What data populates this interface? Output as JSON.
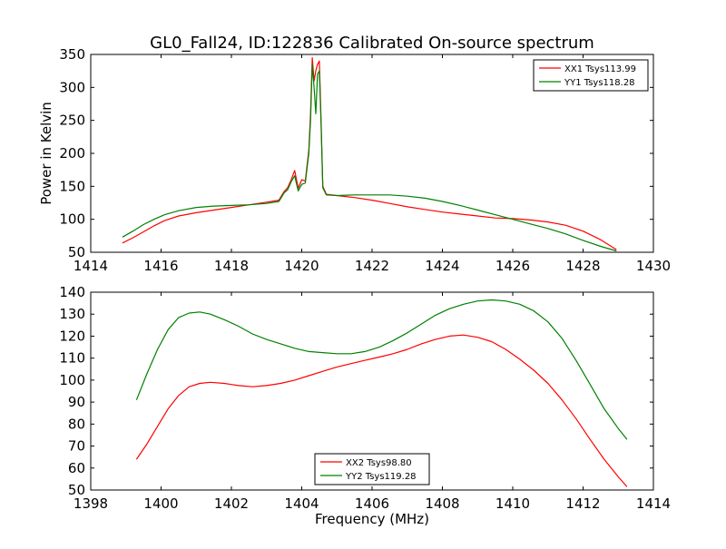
{
  "title": "GL0_Fall24, ID:122836 Calibrated On-source spectrum",
  "chart_data": [
    {
      "type": "line",
      "ylabel": "Power in Kelvin",
      "xlabel": "",
      "xlim": [
        1414,
        1430
      ],
      "ylim": [
        50,
        350
      ],
      "xticks": [
        "1414",
        "1416",
        "1418",
        "1420",
        "1422",
        "1424",
        "1426",
        "1428",
        "1430"
      ],
      "yticks": [
        "50",
        "100",
        "150",
        "200",
        "250",
        "300",
        "350"
      ],
      "grid": false,
      "legend_position": "top-right",
      "series": [
        {
          "name": "XX1 Tsys113.99",
          "color": "#ff0000",
          "x": [
            1414.9,
            1415.2,
            1415.5,
            1415.8,
            1416.1,
            1416.5,
            1417.0,
            1417.5,
            1418.0,
            1418.5,
            1419.0,
            1419.35,
            1419.5,
            1419.6,
            1419.7,
            1419.8,
            1419.9,
            1420.0,
            1420.1,
            1420.2,
            1420.25,
            1420.3,
            1420.35,
            1420.4,
            1420.45,
            1420.5,
            1420.55,
            1420.6,
            1420.7,
            1421.0,
            1421.5,
            1422.0,
            1422.5,
            1423.0,
            1423.5,
            1424.0,
            1424.5,
            1425.0,
            1425.5,
            1426.0,
            1426.5,
            1427.0,
            1427.5,
            1428.0,
            1428.5,
            1428.95
          ],
          "y": [
            64,
            72,
            81,
            90,
            98,
            105,
            110,
            114,
            118,
            122,
            126,
            129,
            142,
            148,
            160,
            174,
            147,
            160,
            158,
            205,
            260,
            345,
            310,
            325,
            335,
            340,
            250,
            150,
            138,
            136,
            133,
            129,
            124,
            119,
            115,
            111,
            108,
            105,
            102,
            101,
            99,
            96,
            91,
            82,
            69,
            54
          ]
        },
        {
          "name": "YY1 Tsys118.28",
          "color": "#008000",
          "x": [
            1414.9,
            1415.2,
            1415.5,
            1415.8,
            1416.1,
            1416.5,
            1417.0,
            1417.5,
            1418.0,
            1418.5,
            1419.0,
            1419.35,
            1419.5,
            1419.6,
            1419.7,
            1419.8,
            1419.9,
            1420.0,
            1420.1,
            1420.2,
            1420.25,
            1420.3,
            1420.35,
            1420.4,
            1420.45,
            1420.5,
            1420.55,
            1420.6,
            1420.7,
            1421.0,
            1421.5,
            1422.0,
            1422.5,
            1423.0,
            1423.5,
            1424.0,
            1424.5,
            1425.0,
            1425.5,
            1426.0,
            1426.5,
            1427.0,
            1427.5,
            1428.0,
            1428.5,
            1428.95
          ],
          "y": [
            73,
            82,
            92,
            100,
            107,
            113,
            118,
            120,
            121,
            122,
            124,
            127,
            140,
            145,
            157,
            166,
            143,
            153,
            155,
            200,
            250,
            335,
            300,
            260,
            320,
            325,
            245,
            148,
            137,
            136,
            137,
            137,
            137,
            135,
            132,
            127,
            121,
            114,
            107,
            100,
            93,
            86,
            78,
            68,
            59,
            52
          ]
        }
      ]
    },
    {
      "type": "line",
      "ylabel": "",
      "xlabel": "Frequency (MHz)",
      "xlim": [
        1398,
        1414
      ],
      "ylim": [
        50,
        140
      ],
      "xticks": [
        "1398",
        "1400",
        "1402",
        "1404",
        "1406",
        "1408",
        "1410",
        "1412",
        "1414"
      ],
      "yticks": [
        "50",
        "60",
        "70",
        "80",
        "90",
        "100",
        "110",
        "120",
        "130",
        "140"
      ],
      "grid": false,
      "legend_position": "bottom-center",
      "series": [
        {
          "name": "XX2 Tsys98.80",
          "color": "#ff0000",
          "x": [
            1399.3,
            1399.6,
            1399.9,
            1400.2,
            1400.5,
            1400.8,
            1401.1,
            1401.4,
            1401.8,
            1402.2,
            1402.6,
            1403.0,
            1403.4,
            1403.8,
            1404.2,
            1404.6,
            1405.0,
            1405.4,
            1405.8,
            1406.2,
            1406.6,
            1407.0,
            1407.4,
            1407.8,
            1408.2,
            1408.6,
            1409.0,
            1409.4,
            1409.8,
            1410.2,
            1410.6,
            1411.0,
            1411.4,
            1411.8,
            1412.2,
            1412.6,
            1413.0,
            1413.25
          ],
          "y": [
            64,
            71,
            79,
            87,
            93,
            97,
            98.5,
            99,
            98.5,
            97.5,
            97,
            97.5,
            98.5,
            100,
            102,
            104,
            106,
            107.5,
            109,
            110.5,
            112,
            114,
            116.5,
            118.5,
            120,
            120.5,
            119.5,
            117.5,
            114,
            109.5,
            104.5,
            98.5,
            91,
            82.5,
            73,
            64,
            56,
            51.5
          ]
        },
        {
          "name": "YY2 Tsys119.28",
          "color": "#008000",
          "x": [
            1399.3,
            1399.6,
            1399.9,
            1400.2,
            1400.5,
            1400.8,
            1401.1,
            1401.4,
            1401.8,
            1402.2,
            1402.6,
            1403.0,
            1403.4,
            1403.8,
            1404.2,
            1404.6,
            1405.0,
            1405.4,
            1405.8,
            1406.2,
            1406.6,
            1407.0,
            1407.4,
            1407.8,
            1408.2,
            1408.6,
            1409.0,
            1409.4,
            1409.8,
            1410.2,
            1410.6,
            1411.0,
            1411.4,
            1411.8,
            1412.2,
            1412.6,
            1413.0,
            1413.25
          ],
          "y": [
            91,
            103,
            114,
            123,
            128.5,
            130.5,
            131,
            130,
            127.5,
            124.5,
            121,
            118.5,
            116.5,
            114.5,
            113,
            112.5,
            112,
            112,
            113,
            115,
            118,
            121.5,
            125.5,
            129.5,
            132.5,
            134.5,
            136,
            136.5,
            136,
            134.5,
            131.5,
            126.5,
            119,
            109,
            98,
            87,
            78,
            73
          ]
        }
      ]
    }
  ]
}
